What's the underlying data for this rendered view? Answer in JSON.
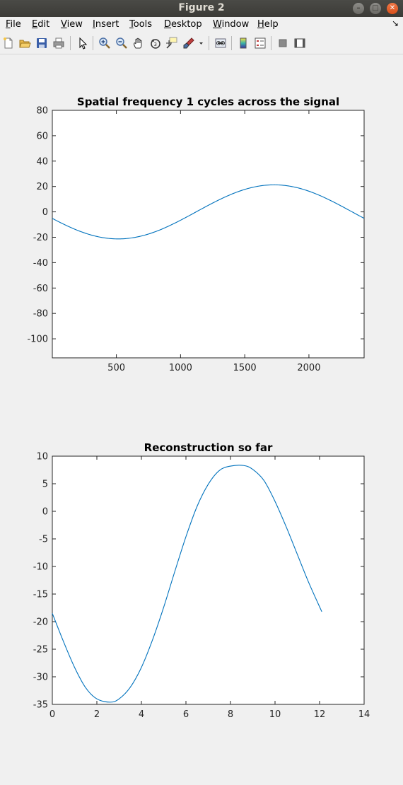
{
  "window": {
    "title": "Figure 2"
  },
  "menubar": {
    "items": [
      {
        "label": "File",
        "mnemonic": "F",
        "rest": "ile"
      },
      {
        "label": "Edit",
        "mnemonic": "E",
        "rest": "dit"
      },
      {
        "label": "View",
        "mnemonic": "V",
        "rest": "iew"
      },
      {
        "label": "Insert",
        "mnemonic": "I",
        "rest": "nsert"
      },
      {
        "label": "Tools",
        "mnemonic": "T",
        "rest": "ools"
      },
      {
        "label": "Desktop",
        "mnemonic": "D",
        "rest": "esktop"
      },
      {
        "label": "Window",
        "mnemonic": "W",
        "rest": "indow"
      },
      {
        "label": "Help",
        "mnemonic": "H",
        "rest": "elp"
      }
    ]
  },
  "toolbar": {
    "icons": [
      "new-figure-icon",
      "open-file-icon",
      "save-icon",
      "print-icon",
      "pointer-icon",
      "zoom-in-icon",
      "zoom-out-icon",
      "pan-icon",
      "rotate-3d-icon",
      "data-cursor-icon",
      "brush-icon",
      "brush-dropdown-icon",
      "link-plot-icon",
      "colorbar-icon",
      "legend-icon",
      "hide-plot-tools-icon",
      "show-plot-tools-icon"
    ]
  },
  "chart_data": [
    {
      "type": "line",
      "title": "Spatial frequency 1 cycles across the signal",
      "xlabel": "",
      "ylabel": "",
      "xlim": [
        1,
        2430
      ],
      "ylim": [
        -115,
        80
      ],
      "xticks": [
        500,
        1000,
        1500,
        2000
      ],
      "yticks": [
        80,
        60,
        40,
        20,
        0,
        -20,
        -40,
        -60,
        -80,
        -100
      ],
      "ytick_labels": [
        "80",
        "60",
        "40",
        "20",
        "0",
        "-20",
        "-40",
        "-60",
        "-80",
        "-100"
      ],
      "xtick_labels": [
        "500",
        "1000",
        "1500",
        "2000"
      ],
      "series": [
        {
          "kind": "sinusoid",
          "amplitude": 21.3,
          "cycles": 1,
          "n": 2430,
          "phase_deg": -14,
          "color": "#0072bd"
        }
      ]
    },
    {
      "type": "line",
      "title": "Reconstruction so far",
      "xlabel": "",
      "ylabel": "",
      "xlim": [
        0,
        14
      ],
      "ylim": [
        -35,
        10
      ],
      "xticks": [
        0,
        2,
        4,
        6,
        8,
        10,
        12,
        14
      ],
      "yticks": [
        10,
        5,
        0,
        -5,
        -10,
        -15,
        -20,
        -25,
        -30,
        -35
      ],
      "xtick_labels": [
        "0",
        "2",
        "4",
        "6",
        "8",
        "10",
        "12",
        "14"
      ],
      "ytick_labels": [
        "10",
        "5",
        "0",
        "-5",
        "-10",
        "-15",
        "-20",
        "-25",
        "-30",
        "-35"
      ],
      "series": [
        {
          "color": "#0072bd",
          "x": [
            0,
            0.5,
            1,
            1.5,
            2,
            2.6,
            3,
            3.5,
            4,
            4.5,
            5,
            5.5,
            6,
            6.5,
            7,
            7.5,
            8,
            8.6,
            9,
            9.5,
            10,
            10.5,
            11,
            11.5,
            12.1
          ],
          "y": [
            -18.5,
            -23.6,
            -28.3,
            -32.0,
            -34.0,
            -34.6,
            -34.0,
            -31.9,
            -28.3,
            -23.3,
            -17.4,
            -10.9,
            -4.6,
            0.9,
            4.9,
            7.4,
            8.2,
            8.3,
            7.6,
            5.6,
            1.8,
            -2.8,
            -7.8,
            -12.8,
            -18.2
          ]
        }
      ]
    }
  ]
}
